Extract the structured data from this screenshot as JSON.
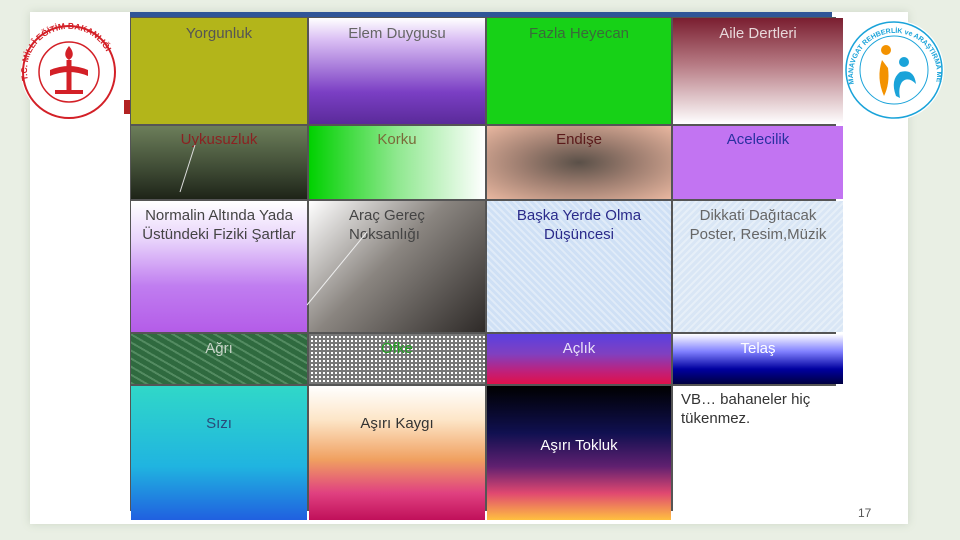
{
  "table": {
    "row1": [
      "Yorgunluk",
      "Elem Duygusu",
      "Fazla Heyecan",
      "Aile Dertleri"
    ],
    "row2": [
      "Uykusuzluk",
      "Korku",
      "Endişe",
      "Acelecilik"
    ],
    "row3": [
      "Normalin Altında Yada Üstündeki Fiziki Şartlar",
      "Araç Gereç Noksanlığı",
      "Başka Yerde Olma Düşüncesi",
      "Dikkati Dağıtacak Poster, Resim,Müzik"
    ],
    "row4": [
      "Ağrı",
      "Öfke",
      "Açlık",
      "Telaş"
    ],
    "row5": [
      "Sızı",
      "Aşırı Kaygı",
      "Aşırı Tokluk",
      "VB… bahaneler hiç tükenmez."
    ]
  },
  "logo_left": {
    "ring_text": "T.C. MİLLÎ EĞİTİM BAKANLIĞI"
  },
  "logo_right": {
    "ring_text": "MANAVGAT REHBERLİK ve ARAŞTIRMA MERKEZİ"
  },
  "page_number": "17",
  "colors": {
    "accent_bar": "#2f5597",
    "meb_red": "#d32027",
    "ram_orange": "#f39200",
    "ram_blue": "#1aa3d9"
  }
}
